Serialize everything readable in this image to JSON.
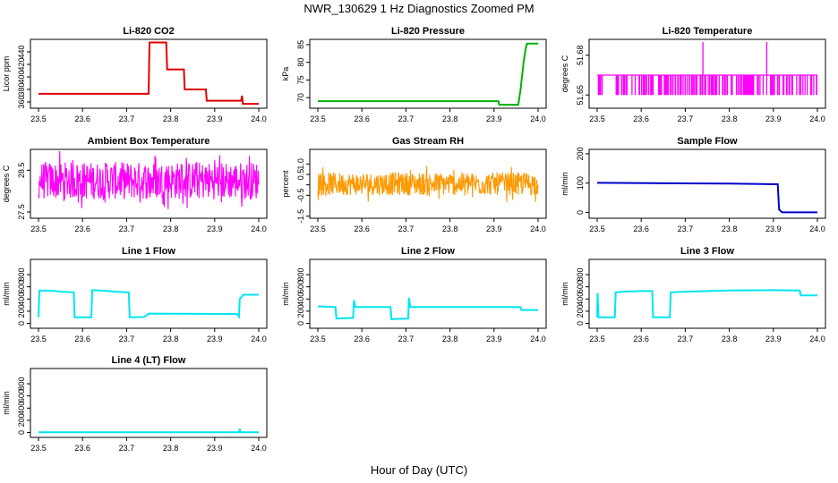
{
  "figure": {
    "title": "NWR_130629  1 Hz Diagnostics Zoomed PM",
    "xlabel": "Hour of Day (UTC)"
  },
  "chart_data": [
    {
      "type": "line",
      "title": "Li-820 CO2",
      "ylabel": "Licor ppm",
      "color": "#e00000",
      "xlim": [
        23.5,
        24.0
      ],
      "ylim": [
        350,
        460
      ],
      "yticks": [
        360,
        380,
        400,
        420,
        440
      ],
      "xticks": [
        23.5,
        23.6,
        23.7,
        23.8,
        23.9,
        24.0
      ],
      "series": [
        {
          "points": [
            [
              23.5,
              373
            ],
            [
              23.75,
              373
            ],
            [
              23.752,
              455
            ],
            [
              23.79,
              455
            ],
            [
              23.792,
              412
            ],
            [
              23.83,
              412
            ],
            [
              23.832,
              380
            ],
            [
              23.88,
              380
            ],
            [
              23.882,
              362
            ],
            [
              23.96,
              362
            ],
            [
              23.962,
              370
            ],
            [
              23.964,
              357
            ],
            [
              24.0,
              357
            ]
          ]
        }
      ]
    },
    {
      "type": "line",
      "title": "Li-820 Pressure",
      "ylabel": "kPa",
      "color": "#00b000",
      "xlim": [
        23.5,
        24.0
      ],
      "ylim": [
        67,
        86.5
      ],
      "yticks": [
        70,
        75,
        80,
        85
      ],
      "xticks": [
        23.5,
        23.6,
        23.7,
        23.8,
        23.9,
        24.0
      ],
      "series": [
        {
          "points": [
            [
              23.5,
              69
            ],
            [
              23.91,
              69
            ],
            [
              23.912,
              68
            ],
            [
              23.955,
              68
            ],
            [
              23.96,
              72
            ],
            [
              23.967,
              80
            ],
            [
              23.972,
              84
            ],
            [
              23.975,
              85.3
            ],
            [
              24.0,
              85.3
            ]
          ]
        }
      ]
    },
    {
      "type": "line",
      "title": "Li-820 Temperature",
      "ylabel": "degrees C",
      "color": "#ff00ff",
      "xlim": [
        23.5,
        24.0
      ],
      "ylim": [
        51.64,
        51.692
      ],
      "yticks": [
        51.65,
        51.68
      ],
      "xticks": [
        23.5,
        23.6,
        23.7,
        23.8,
        23.9,
        24.0
      ],
      "series": [
        {
          "levels": [
            51.665,
            51.65
          ],
          "spikes": [
            [
              23.74,
              51.69
            ],
            [
              23.885,
              51.69
            ]
          ]
        }
      ]
    },
    {
      "type": "line",
      "title": "Ambient Box Temperature",
      "ylabel": "degrees C",
      "color": "#ff00ff",
      "xlim": [
        23.5,
        24.0
      ],
      "ylim": [
        27.35,
        29.0
      ],
      "yticks": [
        27.5,
        28.5
      ],
      "xticks": [
        23.5,
        23.6,
        23.7,
        23.8,
        23.9,
        24.0
      ],
      "series": [
        {
          "noise": {
            "center": 28.25,
            "amplitude": 0.45
          }
        }
      ]
    },
    {
      "type": "line",
      "title": "Gas Stream RH",
      "ylabel": "percent",
      "color": "#ff9900",
      "xlim": [
        23.5,
        24.0
      ],
      "ylim": [
        -1.6,
        1.7
      ],
      "yticks": [
        -1.5,
        -0.5,
        0.5,
        1.0
      ],
      "ytick_labels": [
        "-1.5",
        "-0.5",
        "0.5",
        "1.0"
      ],
      "extra_yticks": [
        0.0
      ],
      "xticks": [
        23.5,
        23.6,
        23.7,
        23.8,
        23.9,
        24.0
      ],
      "series": [
        {
          "noise": {
            "center": 0.05,
            "amplitude": 0.55
          }
        }
      ]
    },
    {
      "type": "line",
      "title": "Sample Flow",
      "ylabel": "ml/min",
      "color": "#0000cc",
      "xlim": [
        23.5,
        24.0
      ],
      "ylim": [
        -20,
        215
      ],
      "yticks": [
        0,
        100,
        200
      ],
      "xticks": [
        23.5,
        23.6,
        23.7,
        23.8,
        23.9,
        24.0
      ],
      "series": [
        {
          "points": [
            [
              23.5,
              101
            ],
            [
              23.8,
              98
            ],
            [
              23.91,
              96
            ],
            [
              23.913,
              10
            ],
            [
              23.92,
              0
            ],
            [
              24.0,
              0
            ]
          ]
        }
      ]
    },
    {
      "type": "line",
      "title": "Line 1 Flow",
      "ylabel": "ml/min",
      "color": "#00e5ee",
      "xlim": [
        23.5,
        24.0
      ],
      "ylim": [
        -80,
        1050
      ],
      "yticks": [
        0,
        200,
        400,
        600,
        800
      ],
      "xticks": [
        23.5,
        23.6,
        23.7,
        23.8,
        23.9,
        24.0
      ],
      "series": [
        {
          "points": [
            [
              23.5,
              100
            ],
            [
              23.502,
              540
            ],
            [
              23.54,
              530
            ],
            [
              23.55,
              520
            ],
            [
              23.58,
              510
            ],
            [
              23.582,
              100
            ],
            [
              23.62,
              100
            ],
            [
              23.622,
              545
            ],
            [
              23.66,
              530
            ],
            [
              23.67,
              520
            ],
            [
              23.705,
              510
            ],
            [
              23.707,
              100
            ],
            [
              23.74,
              105
            ],
            [
              23.745,
              130
            ],
            [
              23.75,
              160
            ],
            [
              23.95,
              155
            ],
            [
              23.955,
              110
            ],
            [
              23.957,
              400
            ],
            [
              23.965,
              470
            ],
            [
              24.0,
              470
            ]
          ]
        }
      ]
    },
    {
      "type": "line",
      "title": "Line 2 Flow",
      "ylabel": "ml/min",
      "color": "#00e5ee",
      "xlim": [
        23.5,
        24.0
      ],
      "ylim": [
        -80,
        1050
      ],
      "yticks": [
        0,
        200,
        400,
        600,
        800
      ],
      "xticks": [
        23.5,
        23.6,
        23.7,
        23.8,
        23.9,
        24.0
      ],
      "series": [
        {
          "points": [
            [
              23.5,
              280
            ],
            [
              23.54,
              270
            ],
            [
              23.542,
              80
            ],
            [
              23.58,
              90
            ],
            [
              23.582,
              380
            ],
            [
              23.585,
              270
            ],
            [
              23.665,
              270
            ],
            [
              23.667,
              70
            ],
            [
              23.705,
              80
            ],
            [
              23.707,
              420
            ],
            [
              23.71,
              270
            ],
            [
              23.96,
              270
            ],
            [
              23.962,
              220
            ],
            [
              24.0,
              220
            ]
          ]
        }
      ]
    },
    {
      "type": "line",
      "title": "Line 3 Flow",
      "ylabel": "ml/min",
      "color": "#00e5ee",
      "xlim": [
        23.5,
        24.0
      ],
      "ylim": [
        -80,
        1050
      ],
      "yticks": [
        0,
        200,
        400,
        600,
        800
      ],
      "xticks": [
        23.5,
        23.6,
        23.7,
        23.8,
        23.9,
        24.0
      ],
      "series": [
        {
          "points": [
            [
              23.5,
              100
            ],
            [
              23.501,
              500
            ],
            [
              23.503,
              100
            ],
            [
              23.54,
              100
            ],
            [
              23.542,
              510
            ],
            [
              23.56,
              520
            ],
            [
              23.6,
              530
            ],
            [
              23.625,
              530
            ],
            [
              23.627,
              100
            ],
            [
              23.665,
              100
            ],
            [
              23.667,
              510
            ],
            [
              23.7,
              520
            ],
            [
              23.8,
              540
            ],
            [
              23.9,
              545
            ],
            [
              23.96,
              540
            ],
            [
              23.962,
              460
            ],
            [
              24.0,
              460
            ]
          ]
        }
      ]
    },
    {
      "type": "line",
      "title": "Line 4 (LT) Flow",
      "ylabel": "ml/min",
      "color": "#00e5ee",
      "xlim": [
        23.5,
        24.0
      ],
      "ylim": [
        -80,
        1050
      ],
      "yticks": [
        0,
        200,
        400,
        600,
        800
      ],
      "xticks": [
        23.5,
        23.6,
        23.7,
        23.8,
        23.9,
        24.0
      ],
      "series": [
        {
          "points": [
            [
              23.5,
              5
            ],
            [
              23.955,
              5
            ],
            [
              23.957,
              60
            ],
            [
              23.959,
              5
            ],
            [
              24.0,
              5
            ]
          ]
        }
      ]
    }
  ]
}
